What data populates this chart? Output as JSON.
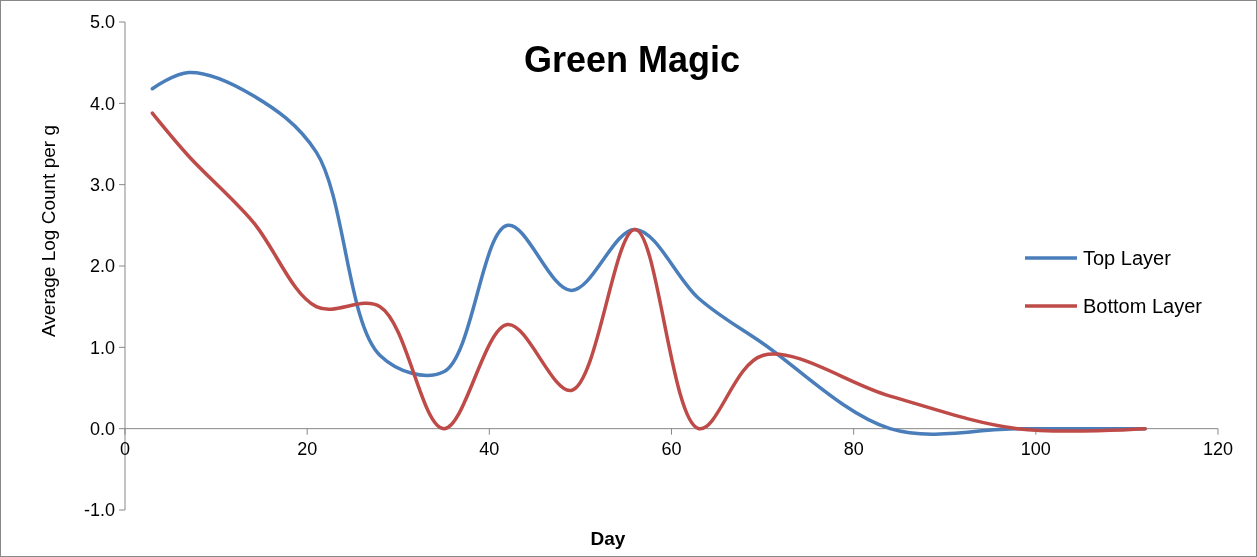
{
  "chart_data": {
    "type": "line",
    "title": "Green Magic",
    "xlabel": "Day",
    "ylabel": "Average Log Count per g",
    "xlim": [
      0,
      120
    ],
    "xticks": [
      0,
      20,
      40,
      60,
      80,
      100,
      120
    ],
    "ylim": [
      -1,
      5
    ],
    "yticks": [
      {
        "value": -1,
        "label": "-1.0"
      },
      {
        "value": 0,
        "label": "0.0"
      },
      {
        "value": 1,
        "label": "1.0"
      },
      {
        "value": 2,
        "label": "2.0"
      },
      {
        "value": 3,
        "label": "3.0"
      },
      {
        "value": 4,
        "label": "4.0"
      },
      {
        "value": 5,
        "label": "5.0"
      }
    ],
    "grid": false,
    "legend": "right",
    "marker": "none",
    "line_style": "solid",
    "series": [
      {
        "name": "Top Layer",
        "color": "#4a7ebb",
        "x": [
          3,
          7,
          14,
          21,
          28,
          35,
          42,
          49,
          56,
          63,
          70,
          84,
          98,
          112
        ],
        "values": [
          4.18,
          4.38,
          4.1,
          3.4,
          0.9,
          0.7,
          2.5,
          1.7,
          2.45,
          1.6,
          1.05,
          0.0,
          0.0,
          0.0
        ]
      },
      {
        "name": "Bottom Layer",
        "color": "#be4b48",
        "x": [
          3,
          7,
          14,
          21,
          28,
          35,
          42,
          49,
          56,
          63,
          70,
          84,
          98,
          112
        ],
        "values": [
          3.88,
          3.35,
          2.55,
          1.5,
          1.5,
          0.0,
          1.28,
          0.47,
          2.45,
          0.0,
          0.9,
          0.4,
          0.0,
          0.0
        ]
      }
    ]
  }
}
